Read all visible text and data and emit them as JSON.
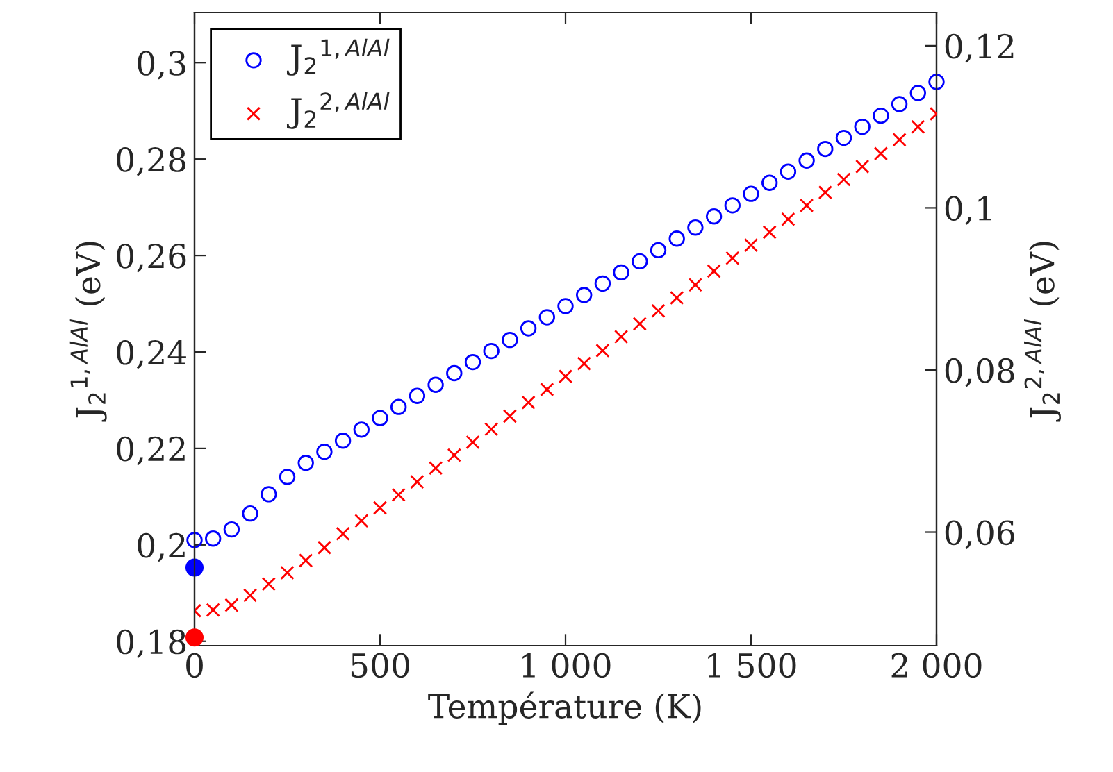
{
  "chart_data": {
    "type": "scatter",
    "xlabel": "Température (K)",
    "ylabel": "J$_{2}$$^{1,AlAl}$ (eV)",
    "y2label": "J$_{2}$$^{2,AlAl}$ (eV)",
    "xlim": [
      0,
      2000
    ],
    "xticks": [
      0,
      500,
      {
        "value": 1000,
        "label": "1 000"
      },
      {
        "value": 1500,
        "label": "1 500"
      },
      {
        "value": 2000,
        "label": "2 000"
      }
    ],
    "ylim": [
      0.1791,
      0.3104
    ],
    "yticks": [
      {
        "value": 0.18,
        "label": "0,18"
      },
      {
        "value": 0.2,
        "label": "0,2"
      },
      {
        "value": 0.22,
        "label": "0,22"
      },
      {
        "value": 0.24,
        "label": "0,24"
      },
      {
        "value": 0.26,
        "label": "0,26"
      },
      {
        "value": 0.28,
        "label": "0,28"
      },
      {
        "value": 0.3,
        "label": "0,3"
      }
    ],
    "y2lim": [
      0.046,
      0.1241
    ],
    "y2ticks": [
      {
        "value": 0.06,
        "label": "0,06"
      },
      {
        "value": 0.08,
        "label": "0,08"
      },
      {
        "value": 0.1,
        "label": "0,1"
      },
      {
        "value": 0.12,
        "label": "0,12"
      }
    ],
    "grid": false,
    "legend": "top left",
    "x": [
      0,
      50,
      100,
      150,
      200,
      250,
      300,
      350,
      400,
      450,
      500,
      550,
      600,
      650,
      700,
      750,
      800,
      850,
      900,
      950,
      1000,
      1050,
      1100,
      1150,
      1200,
      1250,
      1300,
      1350,
      1400,
      1450,
      1500,
      1550,
      1600,
      1650,
      1700,
      1750,
      1800,
      1850,
      1900,
      1950,
      2000
    ],
    "series": [
      {
        "name": "J$_{2}$$^{1,AlAl}$",
        "color": "#0000ff",
        "marker": "circle",
        "values": [
          0.201,
          0.2013,
          0.2032,
          0.2065,
          0.2105,
          0.2141,
          0.217,
          0.2193,
          0.2216,
          0.2239,
          0.2263,
          0.2286,
          0.2309,
          0.2332,
          0.2356,
          0.2379,
          0.2402,
          0.2425,
          0.2449,
          0.2472,
          0.2495,
          0.2518,
          0.2542,
          0.2565,
          0.2588,
          0.2611,
          0.2635,
          0.2658,
          0.2681,
          0.2704,
          0.2728,
          0.2751,
          0.2774,
          0.2797,
          0.2821,
          0.2844,
          0.2867,
          0.289,
          0.2914,
          0.2937,
          0.296
        ]
      },
      {
        "name": "J$_{2}$$^{2,AlAl}$",
        "color": "#ff0000",
        "marker": "cross",
        "axis": "y2",
        "values": [
          0.0503,
          0.0504,
          0.051,
          0.0522,
          0.0536,
          0.055,
          0.0565,
          0.0581,
          0.0598,
          0.0614,
          0.063,
          0.0646,
          0.0662,
          0.0679,
          0.0695,
          0.0711,
          0.0727,
          0.0743,
          0.076,
          0.0776,
          0.0792,
          0.0808,
          0.0824,
          0.0841,
          0.0857,
          0.0873,
          0.0889,
          0.0905,
          0.0922,
          0.0938,
          0.0954,
          0.097,
          0.0986,
          0.1003,
          0.1019,
          0.1035,
          0.1051,
          0.1067,
          0.1084,
          0.11,
          0.1116
        ]
      },
      {
        "color": "#0000ff",
        "marker": "circle",
        "x": [
          0
        ],
        "values": [
          0.1953
        ]
      },
      {
        "color": "#ff0000",
        "marker": "circle",
        "axis": "y2",
        "x": [
          0
        ],
        "values": [
          0.047
        ]
      }
    ]
  }
}
